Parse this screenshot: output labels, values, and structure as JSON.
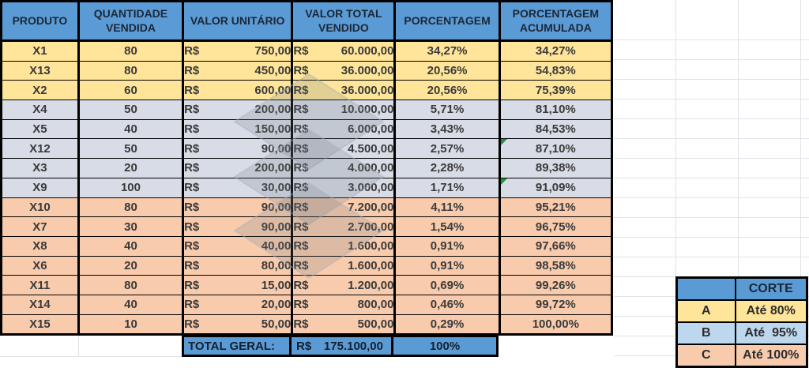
{
  "table": {
    "headers": [
      "PRODUTO",
      "QUANTIDADE\nVENDIDA",
      "VALOR UNITÁRIO",
      "VALOR TOTAL\nVENDIDO",
      "PORCENTAGEM",
      "PORCENTAGEM\nACUMULADA"
    ],
    "rows": [
      {
        "produto": "X1",
        "qtd": "80",
        "moeda_unit": "R$",
        "unit": "750,00",
        "moeda_total": "R$",
        "total": "60.000,00",
        "pct": "34,27%",
        "acum": "34,27%",
        "classe": "A",
        "flag": false
      },
      {
        "produto": "X13",
        "qtd": "80",
        "moeda_unit": "R$",
        "unit": "450,00",
        "moeda_total": "R$",
        "total": "36.000,00",
        "pct": "20,56%",
        "acum": "54,83%",
        "classe": "A",
        "flag": false
      },
      {
        "produto": "X2",
        "qtd": "60",
        "moeda_unit": "R$",
        "unit": "600,00",
        "moeda_total": "R$",
        "total": "36.000,00",
        "pct": "20,56%",
        "acum": "75,39%",
        "classe": "A",
        "flag": false
      },
      {
        "produto": "X4",
        "qtd": "50",
        "moeda_unit": "R$",
        "unit": "200,00",
        "moeda_total": "R$",
        "total": "10.000,00",
        "pct": "5,71%",
        "acum": "81,10%",
        "classe": "B",
        "flag": false
      },
      {
        "produto": "X5",
        "qtd": "40",
        "moeda_unit": "R$",
        "unit": "150,00",
        "moeda_total": "R$",
        "total": "6.000,00",
        "pct": "3,43%",
        "acum": "84,53%",
        "classe": "B",
        "flag": false
      },
      {
        "produto": "X12",
        "qtd": "50",
        "moeda_unit": "R$",
        "unit": "90,00",
        "moeda_total": "R$",
        "total": "4.500,00",
        "pct": "2,57%",
        "acum": "87,10%",
        "classe": "B",
        "flag": true
      },
      {
        "produto": "X3",
        "qtd": "20",
        "moeda_unit": "R$",
        "unit": "200,00",
        "moeda_total": "R$",
        "total": "4.000,00",
        "pct": "2,28%",
        "acum": "89,38%",
        "classe": "B",
        "flag": false
      },
      {
        "produto": "X9",
        "qtd": "100",
        "moeda_unit": "R$",
        "unit": "30,00",
        "moeda_total": "R$",
        "total": "3.000,00",
        "pct": "1,71%",
        "acum": "91,09%",
        "classe": "B",
        "flag": true
      },
      {
        "produto": "X10",
        "qtd": "80",
        "moeda_unit": "R$",
        "unit": "90,00",
        "moeda_total": "R$",
        "total": "7.200,00",
        "pct": "4,11%",
        "acum": "95,21%",
        "classe": "C",
        "flag": false
      },
      {
        "produto": "X7",
        "qtd": "30",
        "moeda_unit": "R$",
        "unit": "90,00",
        "moeda_total": "R$",
        "total": "2.700,00",
        "pct": "1,54%",
        "acum": "96,75%",
        "classe": "C",
        "flag": false
      },
      {
        "produto": "X8",
        "qtd": "40",
        "moeda_unit": "R$",
        "unit": "40,00",
        "moeda_total": "R$",
        "total": "1.600,00",
        "pct": "0,91%",
        "acum": "97,66%",
        "classe": "C",
        "flag": false
      },
      {
        "produto": "X6",
        "qtd": "20",
        "moeda_unit": "R$",
        "unit": "80,00",
        "moeda_total": "R$",
        "total": "1.600,00",
        "pct": "0,91%",
        "acum": "98,58%",
        "classe": "C",
        "flag": false
      },
      {
        "produto": "X11",
        "qtd": "80",
        "moeda_unit": "R$",
        "unit": "15,00",
        "moeda_total": "R$",
        "total": "1.200,00",
        "pct": "0,69%",
        "acum": "99,26%",
        "classe": "C",
        "flag": false
      },
      {
        "produto": "X14",
        "qtd": "40",
        "moeda_unit": "R$",
        "unit": "20,00",
        "moeda_total": "R$",
        "total": "800,00",
        "pct": "0,46%",
        "acum": "99,72%",
        "classe": "C",
        "flag": false
      },
      {
        "produto": "X15",
        "qtd": "10",
        "moeda_unit": "R$",
        "unit": "50,00",
        "moeda_total": "R$",
        "total": "500,00",
        "pct": "0,29%",
        "acum": "100,00%",
        "classe": "C",
        "flag": false
      }
    ],
    "total": {
      "label": "TOTAL GERAL:",
      "moeda": "R$",
      "valor": "175.100,00",
      "pct": "100%"
    }
  },
  "legend": {
    "header_blank": "",
    "header": "CORTE",
    "rows": [
      {
        "classe": "A",
        "corte": "Até 80%"
      },
      {
        "classe": "B",
        "corte": "Até  95%"
      },
      {
        "classe": "C",
        "corte": "Até 100%"
      }
    ]
  },
  "icons": {
    "watermark": "stacked-boxes-logo",
    "cell_flag": "green-error-indicator"
  },
  "colors": {
    "header_blue": "#5B9BD5",
    "class_a_yellow": "#FFE599",
    "class_b_lavender": "#D8DCE6",
    "class_c_orange": "#F8CBAD",
    "legend_b_blue": "#BDD7EE",
    "grid_line": "#DFE3E8",
    "flag_green": "#1F9240",
    "border_black": "#000000"
  }
}
